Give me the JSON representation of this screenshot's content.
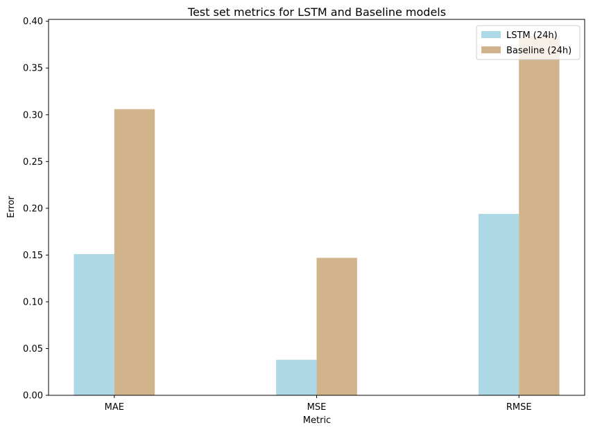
{
  "chart_data": {
    "type": "bar",
    "title": "Test set metrics for LSTM and Baseline models",
    "xlabel": "Metric",
    "ylabel": "Error",
    "categories": [
      "MAE",
      "MSE",
      "RMSE"
    ],
    "series": [
      {
        "name": "LSTM (24h)",
        "values": [
          0.151,
          0.038,
          0.194
        ],
        "color": "#add8e6"
      },
      {
        "name": "Baseline (24h)",
        "values": [
          0.306,
          0.147,
          0.384
        ],
        "color": "#d2b48c"
      }
    ],
    "ylim": [
      0,
      0.402
    ],
    "yticks": [
      "0.00",
      "0.05",
      "0.10",
      "0.15",
      "0.20",
      "0.25",
      "0.30",
      "0.35",
      "0.40"
    ],
    "legend_position": "top-right",
    "grid": false
  }
}
